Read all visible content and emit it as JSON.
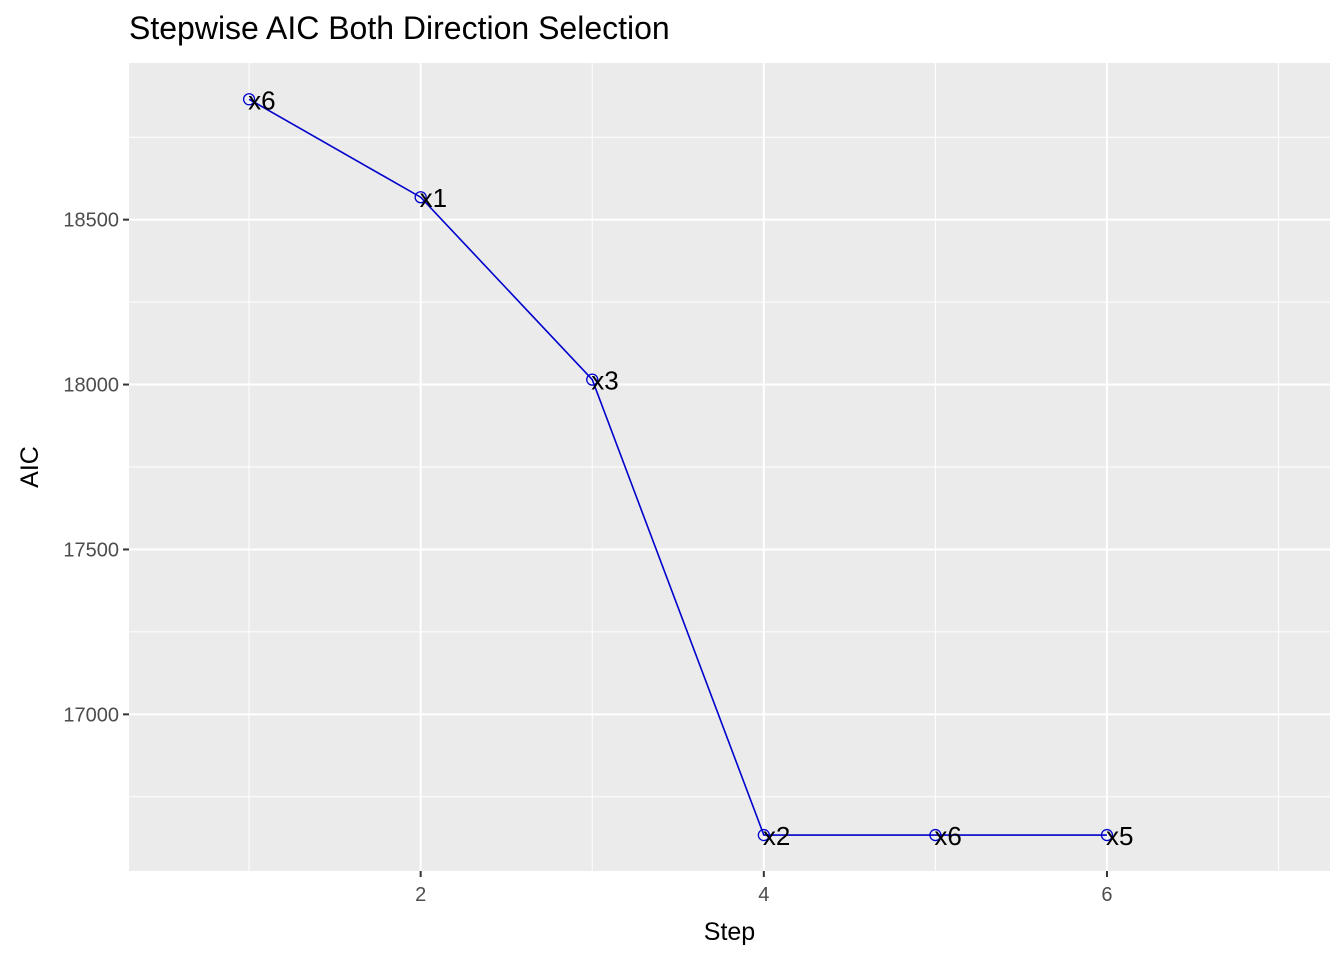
{
  "chart_data": {
    "type": "line",
    "title": "Stepwise AIC Both Direction Selection",
    "xlabel": "Step",
    "ylabel": "AIC",
    "x": [
      1,
      2,
      3,
      4,
      5,
      6
    ],
    "y": [
      18865,
      18568,
      18015,
      16634,
      16634,
      16634
    ],
    "point_labels": [
      "x6",
      "x1",
      "x3",
      "x2",
      "x6",
      "x5"
    ],
    "xlim": [
      0.3,
      7.3
    ],
    "ylim": [
      16525,
      18975
    ],
    "x_ticks": [
      2,
      4,
      6
    ],
    "x_tick_labels": [
      "2",
      "4",
      "6"
    ],
    "y_ticks": [
      17000,
      17500,
      18000,
      18500
    ],
    "y_tick_labels": [
      "17000",
      "17500",
      "18000",
      "18500"
    ],
    "grid": true,
    "line_color": "#0000cd",
    "panel_background": "#ebebeb",
    "grid_color": "#ffffff"
  }
}
